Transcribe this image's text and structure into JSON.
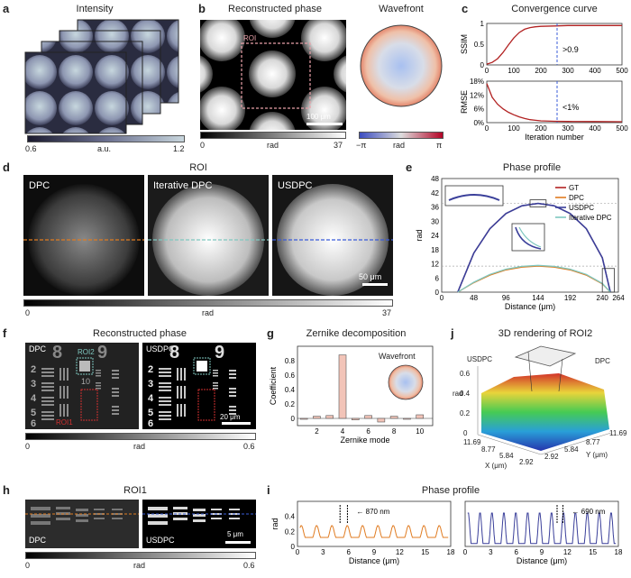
{
  "panels": {
    "a": {
      "letter": "a",
      "title": "Intensity",
      "cb_min": "0.6",
      "cb_label": "a.u.",
      "cb_max": "1.2"
    },
    "b": {
      "letter": "b",
      "title": "Reconstructed phase",
      "roi_label": "ROI",
      "scale_label": "100 μm",
      "cb_min": "0",
      "cb_label": "rad",
      "cb_max": "37",
      "wavefront_title": "Wavefront",
      "wf_cb_min": "−π",
      "wf_cb_label": "rad",
      "wf_cb_max": "π"
    },
    "c": {
      "letter": "c",
      "title": "Convergence curve",
      "threshold_ssim": ">0.9",
      "threshold_rmse": "<1%"
    },
    "d": {
      "letter": "d",
      "title": "ROI",
      "labels": [
        "DPC",
        "Iterative DPC",
        "USDPC"
      ],
      "scale_label": "50 μm",
      "cb_min": "0",
      "cb_label": "rad",
      "cb_max": "37"
    },
    "e": {
      "letter": "e",
      "title": "Phase profile"
    },
    "f": {
      "letter": "f",
      "title": "Reconstructed phase",
      "left_label": "DPC",
      "right_label": "USDPC",
      "roi2": "ROI2",
      "roi1": "ROI1",
      "scale_label": "20 μm",
      "cb_min": "0",
      "cb_label": "rad",
      "cb_max": "0.6",
      "digits": [
        "8",
        "9",
        "2",
        "3",
        "4",
        "5",
        "6",
        "10",
        "1"
      ]
    },
    "g": {
      "letter": "g",
      "title": "Zernike decomposition",
      "wavefront_label": "Wavefront"
    },
    "j": {
      "letter": "j",
      "title": "3D rendering of ROI2",
      "usdpc": "USDPC",
      "dpc": "DPC",
      "zlabel": "rad",
      "xlabel": "X (μm)",
      "ylabel": "Y (μm)",
      "zticks": [
        "0",
        "0.2",
        "0.4",
        "0.6"
      ],
      "xticks": [
        "11.69",
        "8.77",
        "5.84",
        "2.92"
      ],
      "yticks": [
        "2.92",
        "5.84",
        "8.77",
        "11.69"
      ]
    },
    "h": {
      "letter": "h",
      "title": "ROI1",
      "left_label": "DPC",
      "right_label": "USDPC",
      "scale_label": "5 μm",
      "cb_min": "0",
      "cb_label": "rad",
      "cb_max": "0.6"
    },
    "i": {
      "letter": "i",
      "title": "Phase profile",
      "left_annot": "870 nm",
      "right_annot": "690 nm"
    }
  },
  "colors": {
    "gt": "#b22222",
    "dpc": "#e07b20",
    "usdpc": "#3a3f9a",
    "iter": "#7fc8c0",
    "roi": "#e8a0a8",
    "bar": "#f2c4b8",
    "dash_blue": "#3a5bd9"
  },
  "chart_data": [
    {
      "type": "line",
      "id": "c-ssim",
      "title": "Convergence curve",
      "xlabel": "",
      "ylabel": "SSIM",
      "xlim": [
        0,
        500
      ],
      "ylim": [
        0,
        1
      ],
      "yticks": [
        0,
        0.5,
        1
      ],
      "xticks": [
        0,
        100,
        200,
        300,
        400,
        500
      ],
      "series": [
        {
          "x": [
            0,
            20,
            40,
            60,
            80,
            100,
            120,
            140,
            160,
            180,
            200,
            250,
            300,
            400,
            500
          ],
          "y": [
            0.02,
            0.06,
            0.15,
            0.3,
            0.48,
            0.65,
            0.78,
            0.86,
            0.9,
            0.92,
            0.93,
            0.94,
            0.95,
            0.95,
            0.95
          ]
        }
      ],
      "vline": 260
    },
    {
      "type": "line",
      "id": "c-rmse",
      "xlabel": "Iteration number",
      "ylabel": "RMSE",
      "xlim": [
        0,
        500
      ],
      "ylim": [
        0,
        18
      ],
      "yticks": [
        0,
        6,
        12,
        18
      ],
      "ytick_labels": [
        "0%",
        "6%",
        "12%",
        "18%"
      ],
      "xticks": [
        0,
        100,
        200,
        300,
        400,
        500
      ],
      "series": [
        {
          "x": [
            0,
            10,
            20,
            40,
            60,
            80,
            100,
            120,
            140,
            160,
            180,
            200,
            250,
            300,
            400,
            500
          ],
          "y": [
            17,
            14,
            11,
            8,
            6,
            4.5,
            3.4,
            2.5,
            1.8,
            1.3,
            1.0,
            0.8,
            0.6,
            0.5,
            0.45,
            0.4
          ]
        }
      ],
      "vline": 260
    },
    {
      "type": "line",
      "id": "e",
      "title": "Phase profile",
      "xlabel": "Distance (μm)",
      "ylabel": "rad",
      "xlim": [
        0,
        264
      ],
      "ylim": [
        0,
        48
      ],
      "xticks": [
        0,
        48,
        96,
        144,
        192,
        240,
        264
      ],
      "yticks": [
        0,
        6,
        12,
        18,
        24,
        30,
        36,
        42,
        48
      ],
      "series": [
        {
          "name": "GT",
          "x": [
            24,
            48,
            72,
            96,
            120,
            144,
            168,
            192,
            216,
            240,
            252
          ],
          "y": [
            0,
            16.5,
            26.8,
            33.2,
            36.5,
            37.5,
            36.5,
            33.2,
            26.8,
            14.5,
            0
          ]
        },
        {
          "name": "DPC",
          "x": [
            24,
            48,
            72,
            96,
            120,
            144,
            168,
            192,
            216,
            240,
            252
          ],
          "y": [
            0,
            4,
            7.2,
            9.4,
            10.6,
            11,
            10.6,
            9.4,
            7.2,
            3.5,
            0
          ]
        },
        {
          "name": "USDPC",
          "x": [
            24,
            48,
            72,
            96,
            120,
            144,
            168,
            192,
            216,
            240,
            252
          ],
          "y": [
            0,
            16.5,
            26.8,
            33.2,
            36.5,
            37.5,
            36.5,
            33.2,
            26.8,
            14.5,
            0
          ]
        },
        {
          "name": "Iterative DPC",
          "x": [
            24,
            48,
            72,
            96,
            120,
            144,
            168,
            192,
            216,
            240,
            252
          ],
          "y": [
            0,
            4.2,
            7.5,
            9.7,
            10.9,
            11.3,
            10.9,
            9.7,
            7.5,
            3.7,
            0
          ]
        }
      ],
      "hlines": [
        37.5,
        11
      ]
    },
    {
      "type": "bar",
      "id": "g",
      "title": "Zernike decomposition",
      "xlabel": "Zernike mode",
      "ylabel": "Coefficient",
      "categories": [
        1,
        2,
        3,
        4,
        5,
        6,
        7,
        8,
        9,
        10
      ],
      "values": [
        -0.01,
        0.03,
        0.04,
        0.88,
        -0.02,
        0.04,
        -0.05,
        0.03,
        -0.01,
        0.05
      ],
      "ylim": [
        -0.1,
        1
      ],
      "yticks": [
        0,
        0.2,
        0.4,
        0.6,
        0.8
      ],
      "xticks": [
        2,
        4,
        6,
        8,
        10
      ]
    },
    {
      "type": "line",
      "id": "i-left",
      "title": "Phase profile",
      "xlabel": "Distance (μm)",
      "ylabel": "rad",
      "xlim": [
        0,
        18
      ],
      "ylim": [
        0,
        0.6
      ],
      "xticks": [
        0,
        3,
        6,
        9,
        12,
        15,
        18
      ],
      "yticks": [
        0,
        0.2,
        0.4
      ],
      "series": [
        {
          "name": "DPC"
        }
      ]
    },
    {
      "type": "line",
      "id": "i-right",
      "xlabel": "Distance (μm)",
      "xlim": [
        0,
        18
      ],
      "ylim": [
        0,
        0.6
      ],
      "xticks": [
        0,
        3,
        6,
        9,
        12,
        15,
        18
      ],
      "series": [
        {
          "name": "USDPC"
        }
      ]
    }
  ]
}
